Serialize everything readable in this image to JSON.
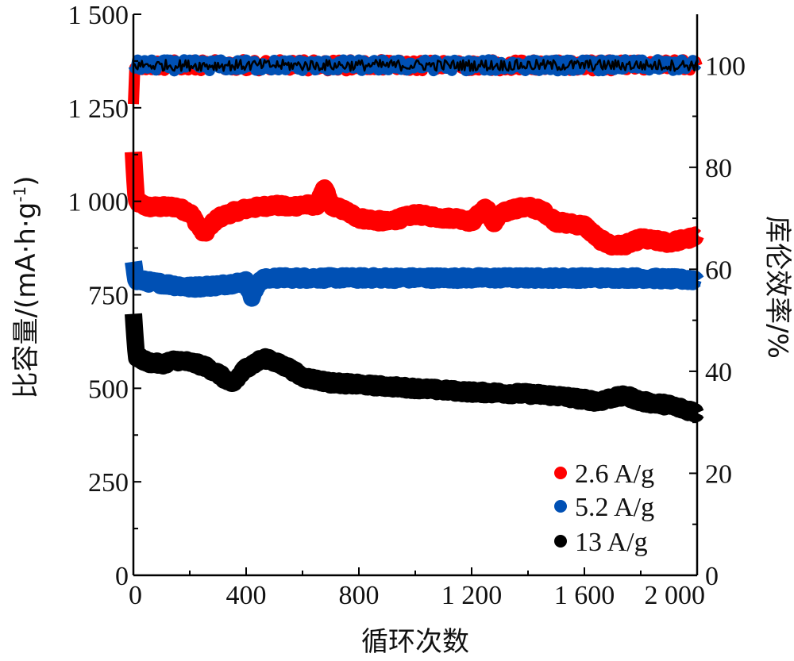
{
  "chart_data": {
    "type": "line",
    "title": "",
    "xlabel": "循环次数",
    "ylabel": "比容量/(mA·h·g",
    "ylabel_sup": "-1",
    "ylabel_close": ")",
    "y2label": "库伦效率/%",
    "xlim": [
      0,
      2000
    ],
    "ylim": [
      0,
      1500
    ],
    "y2lim": [
      0,
      110
    ],
    "x_ticks": [
      0,
      400,
      800,
      1200,
      1600,
      2000
    ],
    "x_tick_labels": [
      "0",
      "400",
      "800",
      "1 200",
      "1 600",
      "2 000"
    ],
    "y_ticks": [
      0,
      250,
      500,
      750,
      1000,
      1250,
      1500
    ],
    "y_tick_labels": [
      "0",
      "250",
      "500",
      "750",
      "1 000",
      "1 250",
      "1 500"
    ],
    "y2_ticks": [
      0,
      20,
      40,
      60,
      80,
      100
    ],
    "y2_tick_labels": [
      "0",
      "20",
      "40",
      "60",
      "80",
      "100"
    ],
    "legend_position": "bottom-right",
    "grid": false,
    "series": [
      {
        "name": "2.6 A/g",
        "color": "#ff0000",
        "axis": "left",
        "x": [
          0,
          10,
          50,
          100,
          150,
          200,
          250,
          300,
          350,
          400,
          450,
          500,
          550,
          600,
          650,
          680,
          700,
          750,
          800,
          900,
          1000,
          1050,
          1100,
          1150,
          1200,
          1250,
          1280,
          1300,
          1350,
          1400,
          1450,
          1500,
          1550,
          1600,
          1650,
          1700,
          1750,
          1800,
          1900,
          2000
        ],
        "y": [
          1130,
          1000,
          985,
          985,
          985,
          970,
          915,
          955,
          970,
          980,
          985,
          990,
          985,
          990,
          990,
          1035,
          990,
          975,
          955,
          945,
          965,
          960,
          955,
          955,
          945,
          985,
          940,
          965,
          980,
          985,
          975,
          945,
          940,
          935,
          900,
          880,
          885,
          900,
          890,
          905
        ]
      },
      {
        "name": "5.2 A/g",
        "color": "#0050b4",
        "axis": "left",
        "x": [
          0,
          10,
          50,
          100,
          200,
          300,
          400,
          420,
          450,
          500,
          600,
          700,
          800,
          1000,
          1200,
          1400,
          1600,
          1800,
          2000
        ],
        "y": [
          840,
          790,
          785,
          780,
          770,
          775,
          785,
          745,
          790,
          795,
          795,
          795,
          795,
          795,
          795,
          795,
          795,
          795,
          790
        ]
      },
      {
        "name": "13 A/g",
        "color": "#000000",
        "axis": "left",
        "x": [
          0,
          10,
          50,
          100,
          150,
          200,
          250,
          300,
          350,
          400,
          450,
          480,
          500,
          550,
          600,
          700,
          800,
          1000,
          1200,
          1400,
          1500,
          1600,
          1650,
          1700,
          1750,
          1800,
          1900,
          2000
        ],
        "y": [
          700,
          585,
          570,
          565,
          575,
          570,
          560,
          540,
          510,
          555,
          575,
          580,
          570,
          555,
          530,
          515,
          510,
          500,
          490,
          485,
          480,
          470,
          465,
          475,
          480,
          465,
          455,
          435
        ]
      },
      {
        "name": "2.6 A/g",
        "color": "#ff0000",
        "axis": "right",
        "x": [
          0,
          5,
          100,
          200,
          400,
          600,
          800,
          1000,
          1200,
          1400,
          1600,
          1800,
          2000
        ],
        "y": [
          93,
          100,
          100,
          100,
          100,
          100,
          100,
          100,
          100,
          100,
          100,
          100,
          100
        ]
      },
      {
        "name": "5.2 A/g",
        "color": "#0050b4",
        "axis": "right",
        "x": [
          0,
          100,
          200,
          400,
          600,
          800,
          1000,
          1200,
          1400,
          1600,
          1800,
          2000
        ],
        "y": [
          100,
          100,
          100,
          100,
          100,
          100,
          100,
          100,
          100,
          100,
          100,
          100
        ]
      },
      {
        "name": "13 A/g",
        "color": "#000000",
        "axis": "right",
        "x": [
          0,
          100,
          200,
          400,
          600,
          800,
          1000,
          1200,
          1400,
          1600,
          1800,
          2000
        ],
        "y": [
          100,
          100,
          100,
          100,
          100,
          100,
          100,
          100,
          100,
          100,
          100,
          100
        ]
      }
    ]
  }
}
